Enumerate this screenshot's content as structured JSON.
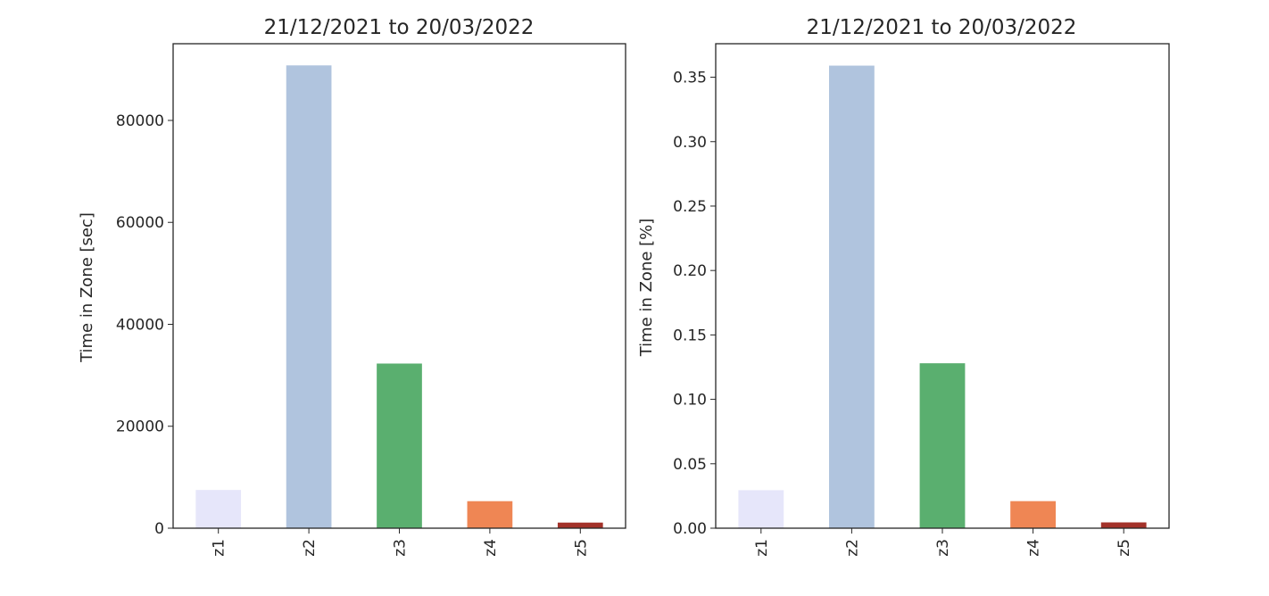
{
  "chart_data": [
    {
      "type": "bar",
      "title": "21/12/2021 to 20/03/2022",
      "xlabel": "",
      "ylabel": "Time in Zone [sec]",
      "categories": [
        "z1",
        "z2",
        "z3",
        "z4",
        "z5"
      ],
      "values": [
        7500,
        90800,
        32300,
        5300,
        1100
      ],
      "colors": [
        "#e6e6fa",
        "#b0c4de",
        "#5aaf6f",
        "#ef8654",
        "#a3322a"
      ],
      "ylim": [
        0,
        95050
      ],
      "yticks": [
        0,
        20000,
        40000,
        60000,
        80000
      ],
      "ytick_labels": [
        "0",
        "20000",
        "40000",
        "60000",
        "80000"
      ],
      "grid": false,
      "legend": "none"
    },
    {
      "type": "bar",
      "title": "21/12/2021 to 20/03/2022",
      "xlabel": "",
      "ylabel": "Time in Zone [%]",
      "categories": [
        "z1",
        "z2",
        "z3",
        "z4",
        "z5"
      ],
      "values": [
        0.0295,
        0.359,
        0.128,
        0.021,
        0.0045
      ],
      "colors": [
        "#e6e6fa",
        "#b0c4de",
        "#5aaf6f",
        "#ef8654",
        "#a3322a"
      ],
      "ylim": [
        0,
        0.376
      ],
      "yticks": [
        0.0,
        0.05,
        0.1,
        0.15,
        0.2,
        0.25,
        0.3,
        0.35
      ],
      "ytick_labels": [
        "0.00",
        "0.05",
        "0.10",
        "0.15",
        "0.20",
        "0.25",
        "0.30",
        "0.35"
      ],
      "grid": false,
      "legend": "none"
    }
  ]
}
